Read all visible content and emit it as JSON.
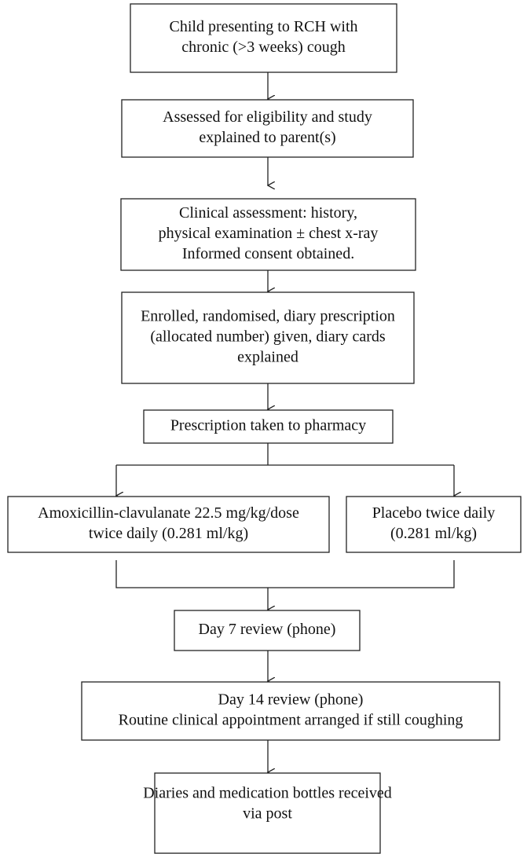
{
  "nodes": [
    {
      "lines": [
        "Child presenting to RCH with",
        "chronic (>3 weeks) cough"
      ]
    },
    {
      "lines": [
        "Assessed for eligibility and study",
        "explained to parent(s)"
      ]
    },
    {
      "lines": [
        "Clinical assessment: history,",
        "physical examination ± chest x-ray",
        "Informed consent obtained."
      ]
    },
    {
      "lines": [
        "Enrolled, randomised, diary prescription",
        "(allocated number) given, diary cards",
        "explained"
      ]
    },
    {
      "lines": [
        "Prescription taken to pharmacy"
      ]
    },
    {
      "lines": [
        "Amoxicillin-clavulanate 22.5 mg/kg/dose",
        "twice daily (0.281 ml/kg)"
      ]
    },
    {
      "lines": [
        "Placebo twice daily",
        "(0.281 ml/kg)"
      ]
    },
    {
      "lines": [
        "Day 7 review (phone)"
      ]
    },
    {
      "lines": [
        "Day 14 review (phone)",
        "Routine clinical appointment arranged if still coughing"
      ]
    },
    {
      "lines": [
        "Diaries and medication bottles received",
        "via post"
      ]
    }
  ]
}
